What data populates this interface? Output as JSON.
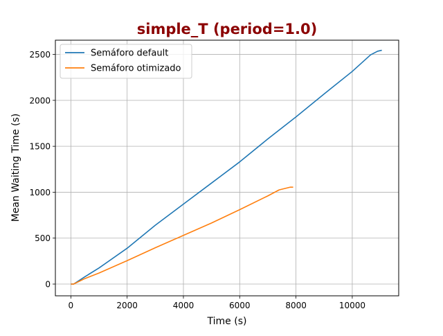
{
  "chart_data": {
    "type": "line",
    "title": "simple_T (period=1.0)",
    "title_color": "#8b0000",
    "xlabel": "Time (s)",
    "ylabel": "Mean Waiting Time (s)",
    "xlim": [
      -550,
      11650
    ],
    "ylim": [
      -128,
      2655
    ],
    "xticks": [
      0,
      2000,
      4000,
      6000,
      8000,
      10000
    ],
    "yticks": [
      0,
      500,
      1000,
      1500,
      2000,
      2500
    ],
    "grid": true,
    "legend_position": "upper-left",
    "series": [
      {
        "name": "Semáforo default",
        "color": "#1f77b4",
        "x": [
          0,
          100,
          500,
          1000,
          2000,
          3000,
          4000,
          5000,
          6000,
          7000,
          8000,
          9000,
          10000,
          10650,
          10900,
          11050
        ],
        "y": [
          0,
          0,
          80,
          175,
          390,
          640,
          870,
          1100,
          1330,
          1580,
          1820,
          2070,
          2315,
          2495,
          2535,
          2545
        ]
      },
      {
        "name": "Semáforo otimizado",
        "color": "#ff7f0e",
        "x": [
          0,
          100,
          500,
          1000,
          2000,
          3000,
          4000,
          5000,
          6000,
          7000,
          7400,
          7800,
          7900
        ],
        "y": [
          0,
          0,
          60,
          120,
          255,
          395,
          530,
          665,
          810,
          960,
          1025,
          1055,
          1055
        ]
      }
    ]
  }
}
